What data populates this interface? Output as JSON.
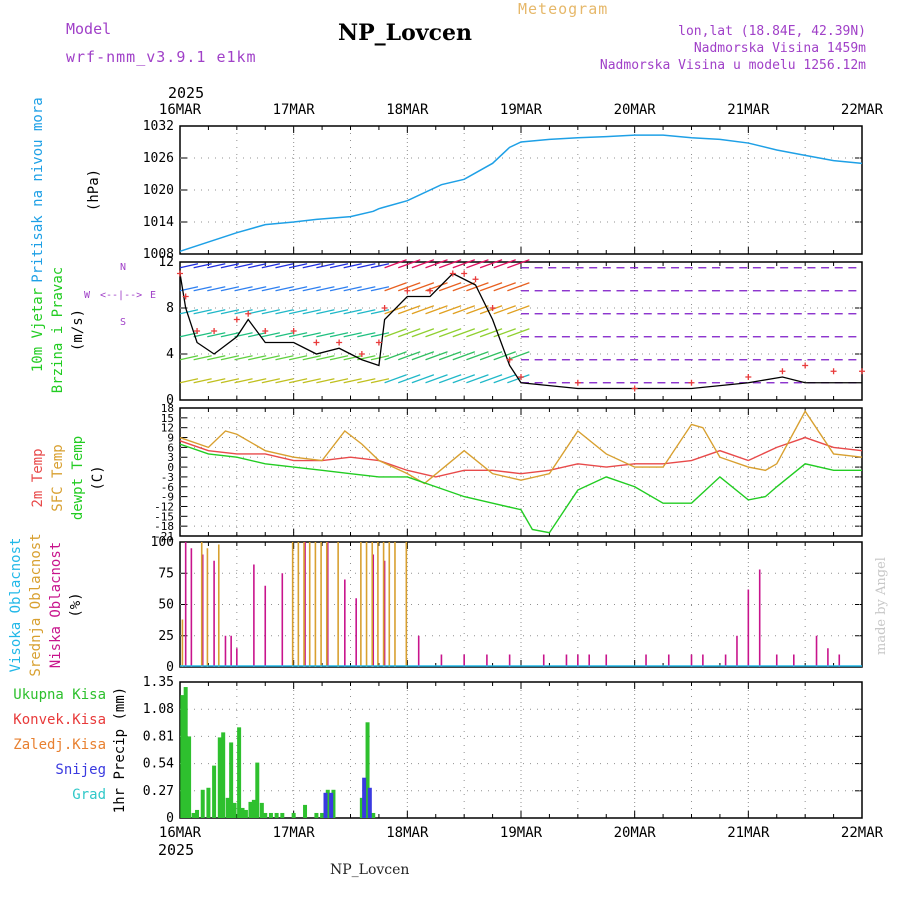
{
  "header": {
    "title": "NP_Lovcen",
    "model_label": "Model",
    "model_name": "wrf-nmm_v3.9.1 e1km",
    "meteogram": "Meteogram",
    "location": [
      "lon,lat (18.84E, 42.39N)",
      "Nadmorska Visina 1459m",
      "Nadmorska Visina u modelu 1256.12m"
    ],
    "footer": "NP_Lovcen",
    "credit": "made by Angel"
  },
  "colors": {
    "pressure": "#1ea0e6",
    "wind_black": "#000000",
    "wind_marker": "#e83a3a",
    "t2m": "#e84a4a",
    "sfc": "#d8a030",
    "dewpt": "#22cc22",
    "low_cloud": "#c8148c",
    "mid_cloud": "#d8a030",
    "high_cloud": "#22b8e8",
    "precip_total": "#2ec02e",
    "snow": "#3a3ae0",
    "grid": "#909090"
  },
  "chart_data": [
    {
      "type": "line",
      "ylabel_lines": [
        "Pritisak na nivou mora",
        "(hPa)"
      ],
      "ylim": [
        1008,
        1032
      ],
      "yticks": [
        "1032",
        "1026",
        "1020",
        "1014",
        "1008"
      ],
      "x_day_ticks": [
        "16MAR",
        "17MAR",
        "18MAR",
        "19MAR",
        "20MAR",
        "21MAR",
        "22MAR"
      ],
      "x_year": "2025",
      "series": [
        {
          "x": [
            0,
            0.5,
            0.75,
            1,
            1.2,
            1.5,
            1.7,
            1.75,
            2,
            2.3,
            2.5,
            2.75,
            2.9,
            3,
            3.25,
            3.5,
            3.75,
            4,
            4.25,
            4.5,
            4.75,
            5,
            5.25,
            5.5,
            5.75,
            6
          ],
          "values": [
            1008.5,
            1012,
            1013.5,
            1014,
            1014.5,
            1015,
            1016,
            1016.5,
            1018,
            1021,
            1022,
            1025,
            1028,
            1029,
            1029.5,
            1029.8,
            1030,
            1030.3,
            1030.3,
            1029.8,
            1029.5,
            1028.8,
            1027.5,
            1026.5,
            1025.5,
            1025
          ]
        }
      ]
    },
    {
      "type": "line",
      "ylabel_lines": [
        "10m Vjetar",
        "Brzina i Pravac",
        "(m/s)"
      ],
      "direction_labels": [
        "W",
        "<--|-->",
        "E",
        "N",
        "S"
      ],
      "ylim": [
        0,
        12
      ],
      "yticks": [
        "12",
        "8",
        "4",
        "0"
      ],
      "series": [
        {
          "name": "speed",
          "x": [
            0,
            0.05,
            0.15,
            0.3,
            0.5,
            0.6,
            0.75,
            1,
            1.2,
            1.4,
            1.6,
            1.75,
            1.8,
            2,
            2.2,
            2.4,
            2.5,
            2.6,
            2.75,
            2.9,
            3,
            3.5,
            4,
            4.5,
            5,
            5.3,
            5.5,
            5.75,
            6
          ],
          "values": [
            11,
            8,
            5,
            4,
            5.5,
            7,
            5,
            5,
            4,
            4.5,
            3.5,
            3,
            7,
            9,
            9,
            11,
            10.5,
            10,
            7,
            3,
            1.5,
            1,
            1,
            1,
            1.5,
            2,
            1.5,
            1.5,
            1.5
          ]
        },
        {
          "name": "gust",
          "x": [
            0,
            0.05,
            0.15,
            0.3,
            0.5,
            0.6,
            0.75,
            1,
            1.2,
            1.4,
            1.6,
            1.75,
            1.8,
            2,
            2.2,
            2.4,
            2.5,
            2.6,
            2.75,
            2.9,
            3,
            3.5,
            4,
            4.5,
            5,
            5.3,
            5.5,
            5.75,
            6
          ],
          "values": [
            11,
            9,
            6,
            6,
            7,
            7.5,
            6,
            6,
            5,
            5,
            4,
            5,
            8,
            9.5,
            9.5,
            11,
            11,
            10.5,
            8,
            3.5,
            2,
            1.5,
            1,
            1.5,
            2,
            2.5,
            3,
            2.5,
            2.5
          ]
        }
      ]
    },
    {
      "type": "line",
      "ylabel_lines": [
        "2m Temp",
        "SFC Temp",
        "dewpt Temp",
        "(C)"
      ],
      "ylim": [
        -21,
        18
      ],
      "yticks": [
        "18",
        "15",
        "12",
        "9",
        "6",
        "3",
        "0",
        "-3",
        "-6",
        "-9",
        "-12",
        "-15",
        "-18",
        "-21"
      ],
      "series": [
        {
          "name": "2m Temp",
          "x": [
            0,
            0.25,
            0.5,
            0.75,
            1,
            1.25,
            1.5,
            1.75,
            2,
            2.25,
            2.5,
            2.75,
            3,
            3.25,
            3.5,
            3.75,
            4,
            4.25,
            4.5,
            4.75,
            5,
            5.25,
            5.5,
            5.75,
            6
          ],
          "values": [
            8,
            5,
            4,
            4,
            2,
            2,
            3,
            2,
            -1,
            -3,
            -1,
            -1,
            -2,
            -1,
            1,
            0,
            1,
            1,
            2,
            5,
            2,
            6,
            9,
            6,
            5
          ]
        },
        {
          "name": "SFC Temp",
          "x": [
            0,
            0.25,
            0.4,
            0.5,
            0.75,
            1,
            1.25,
            1.45,
            1.6,
            1.75,
            2,
            2.15,
            2.5,
            2.75,
            3,
            3.25,
            3.5,
            3.75,
            4,
            4.25,
            4.5,
            4.6,
            4.75,
            5,
            5.15,
            5.25,
            5.5,
            5.75,
            6
          ],
          "values": [
            9,
            6,
            11,
            10,
            5,
            3,
            2,
            11,
            7,
            2,
            -2,
            -5,
            5,
            -2,
            -4,
            -2,
            11,
            4,
            0,
            0,
            13,
            12,
            3,
            0,
            -1,
            1,
            17,
            4,
            3
          ]
        },
        {
          "name": "dewpt Temp",
          "x": [
            0,
            0.25,
            0.5,
            0.75,
            1,
            1.25,
            1.5,
            1.75,
            2,
            2.25,
            2.5,
            2.75,
            3,
            3.1,
            3.25,
            3.5,
            3.75,
            4,
            4.25,
            4.5,
            4.75,
            5,
            5.15,
            5.25,
            5.5,
            5.75,
            6
          ],
          "values": [
            7,
            4,
            3,
            1,
            0,
            -1,
            -2,
            -3,
            -3,
            -6,
            -9,
            -11,
            -13,
            -19,
            -20,
            -7,
            -3,
            -6,
            -11,
            -11,
            -3,
            -10,
            -9,
            -6,
            1,
            -1,
            -1
          ]
        }
      ]
    },
    {
      "type": "bar",
      "ylabel_lines": [
        "Visoka Oblacnost",
        "Srednja Oblacnost",
        "Niska Oblacnost",
        "(%)"
      ],
      "ylim": [
        0,
        100
      ],
      "yticks": [
        "100",
        "75",
        "50",
        "25",
        "0"
      ],
      "series": [
        {
          "name": "Niska",
          "x": [
            0.05,
            0.1,
            0.2,
            0.3,
            0.4,
            0.45,
            0.5,
            0.65,
            0.75,
            0.9,
            1.1,
            1.3,
            1.45,
            1.55,
            1.7,
            1.8,
            2.1,
            2.3,
            2.5,
            2.7,
            2.9,
            3.2,
            3.4,
            3.5,
            3.6,
            3.75,
            4.1,
            4.3,
            4.5,
            4.6,
            4.8,
            4.9,
            5.0,
            5.1,
            5.25,
            5.4,
            5.6,
            5.7,
            5.8
          ],
          "values": [
            100,
            95,
            90,
            85,
            25,
            25,
            15,
            82,
            65,
            75,
            100,
            100,
            70,
            55,
            90,
            85,
            25,
            10,
            10,
            10,
            10,
            10,
            10,
            10,
            10,
            10,
            10,
            10,
            10,
            10,
            10,
            25,
            62,
            78,
            10,
            10,
            25,
            15,
            10
          ]
        },
        {
          "name": "Srednja",
          "x": [
            0.03,
            0.2,
            0.25,
            0.35,
            1.0,
            1.05,
            1.1,
            1.15,
            1.2,
            1.25,
            1.3,
            1.4,
            1.6,
            1.65,
            1.7,
            1.75,
            1.8,
            1.85,
            1.9,
            2.0
          ],
          "values": [
            38,
            100,
            95,
            98,
            100,
            100,
            100,
            100,
            100,
            100,
            100,
            100,
            100,
            100,
            100,
            100,
            100,
            100,
            100,
            100
          ]
        }
      ]
    },
    {
      "type": "bar",
      "ylabel_lines": [
        "1hr Precip (mm)"
      ],
      "legend": [
        "Ukupna Kisa",
        "Konvek.Kisa",
        "Zaledj.Kisa",
        "Snijeg",
        "Grad"
      ],
      "ylim": [
        0,
        1.35
      ],
      "yticks": [
        "1.35",
        "1.08",
        "0.81",
        "0.54",
        "0.27",
        "0"
      ],
      "series": [
        {
          "name": "Ukupna Kisa",
          "x": [
            0.02,
            0.05,
            0.08,
            0.12,
            0.15,
            0.2,
            0.25,
            0.3,
            0.35,
            0.38,
            0.42,
            0.45,
            0.48,
            0.52,
            0.55,
            0.58,
            0.62,
            0.65,
            0.68,
            0.72,
            0.75,
            0.8,
            0.85,
            0.9,
            1.0,
            1.1,
            1.2,
            1.25,
            1.3,
            1.35,
            1.6,
            1.65,
            1.7
          ],
          "values": [
            1.22,
            1.3,
            0.81,
            0.05,
            0.08,
            0.28,
            0.3,
            0.52,
            0.8,
            0.85,
            0.2,
            0.75,
            0.15,
            0.9,
            0.1,
            0.08,
            0.16,
            0.18,
            0.55,
            0.15,
            0.05,
            0.05,
            0.05,
            0.05,
            0.05,
            0.13,
            0.05,
            0.05,
            0.28,
            0.28,
            0.2,
            0.95,
            0.05
          ]
        },
        {
          "name": "Snijeg",
          "x": [
            1.28,
            1.33,
            1.62,
            1.67
          ],
          "values": [
            0.25,
            0.25,
            0.4,
            0.3
          ]
        }
      ]
    }
  ]
}
